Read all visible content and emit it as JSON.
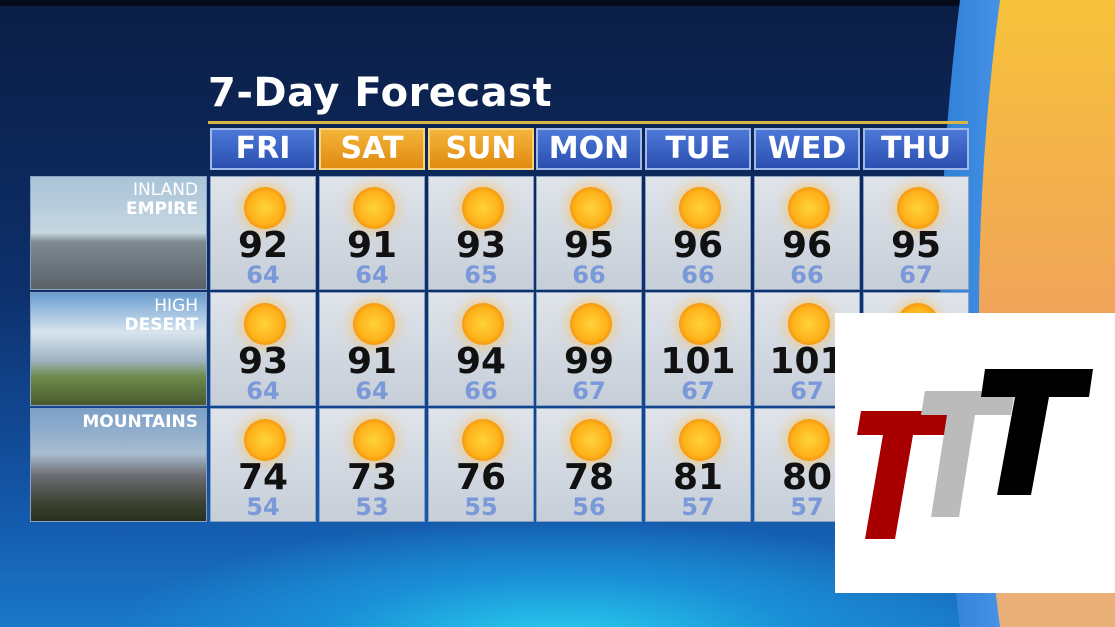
{
  "title": "7-Day Forecast",
  "days": [
    {
      "label": "FRI",
      "weekend": false
    },
    {
      "label": "SAT",
      "weekend": true
    },
    {
      "label": "SUN",
      "weekend": true
    },
    {
      "label": "MON",
      "weekend": false
    },
    {
      "label": "TUE",
      "weekend": false
    },
    {
      "label": "WED",
      "weekend": false
    },
    {
      "label": "THU",
      "weekend": false
    }
  ],
  "regions": [
    {
      "line1": "INLAND",
      "line2": "EMPIRE",
      "icon": "sunny-icon",
      "highs": [
        "92",
        "91",
        "93",
        "95",
        "96",
        "96",
        "95"
      ],
      "lows": [
        "64",
        "64",
        "65",
        "66",
        "66",
        "66",
        "67"
      ]
    },
    {
      "line1": "HIGH",
      "line2": "DESERT",
      "icon": "sunny-icon",
      "highs": [
        "93",
        "91",
        "94",
        "99",
        "101",
        "101",
        null
      ],
      "lows": [
        "64",
        "64",
        "66",
        "67",
        "67",
        "67",
        null
      ]
    },
    {
      "line1": "",
      "line2": "MOUNTAINS",
      "icon": "sunny-icon",
      "highs": [
        "74",
        "73",
        "76",
        "78",
        "81",
        "80",
        null
      ],
      "lows": [
        "54",
        "53",
        "55",
        "56",
        "57",
        "57",
        null
      ]
    }
  ],
  "colors": {
    "weekday_header": "#3a62c4",
    "weekend_header": "#eca024",
    "high_temp": "#111111",
    "low_temp": "#7b98d8",
    "logo_red": "#a80000",
    "logo_gray": "#bbbbbb",
    "logo_black": "#000000"
  },
  "logo": {
    "text": "TTT"
  }
}
